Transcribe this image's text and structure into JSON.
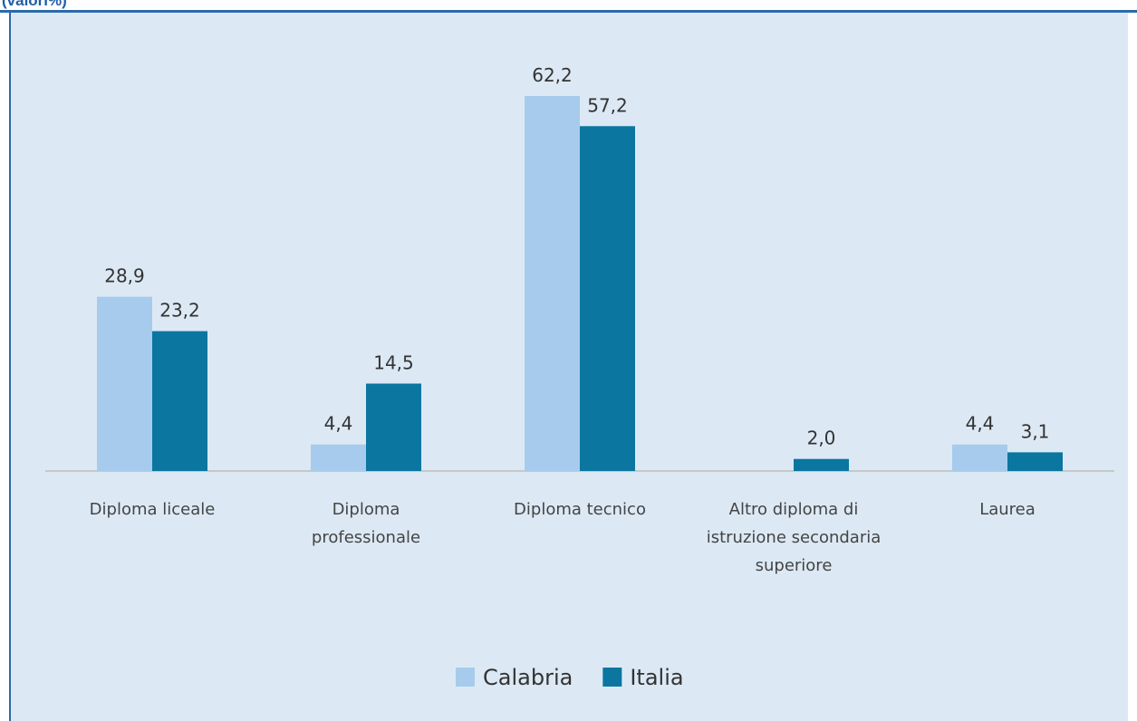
{
  "chart_data": {
    "type": "bar",
    "title": "(valori%)",
    "categories": [
      "Diploma liceale",
      "Diploma professionale",
      "Diploma tecnico",
      "Altro diploma di istruzione secondaria superiore",
      "Laurea"
    ],
    "series": [
      {
        "name": "Calabria",
        "color": "#a7cbec",
        "values": [
          28.9,
          4.4,
          62.2,
          null,
          4.4
        ],
        "value_labels": [
          "28,9",
          "4,4",
          "62,2",
          null,
          "4,4"
        ]
      },
      {
        "name": "Italia",
        "color": "#0b76a0",
        "values": [
          23.2,
          14.5,
          57.2,
          2.0,
          3.1
        ],
        "value_labels": [
          "23,2",
          "14,5",
          "57,2",
          "2,0",
          "3,1"
        ]
      }
    ]
  }
}
